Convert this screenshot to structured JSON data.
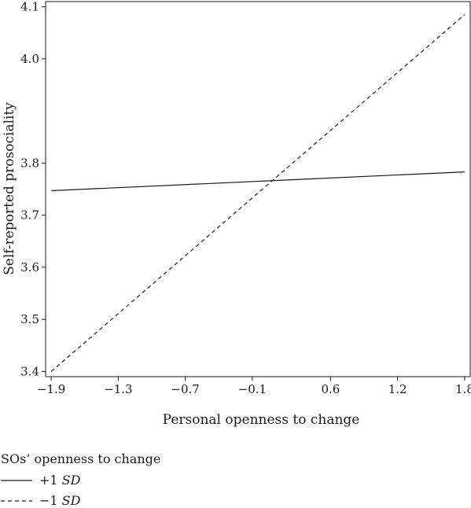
{
  "chart_data": {
    "type": "line",
    "xlabel": "Personal openness to change",
    "ylabel": "Self-reported prosociality",
    "x_ticks": [
      "−1.9",
      "−1.3",
      "−0.7",
      "−0.1",
      "0.6",
      "1.2",
      "1.8"
    ],
    "y_ticks": [
      "3.4",
      "3.5",
      "3.6",
      "3.7",
      "3.8",
      "4.0",
      "4.1"
    ],
    "x_tick_values": [
      -1.9,
      -1.3,
      -0.7,
      -0.1,
      0.6,
      1.2,
      1.8
    ],
    "y_tick_values": [
      3.4,
      3.5,
      3.6,
      3.7,
      3.8,
      4.0,
      4.1
    ],
    "xlim": [
      -1.95,
      1.85
    ],
    "ylim": [
      3.39,
      4.11
    ],
    "grid": false,
    "legend": {
      "title": "SOs’ openness to change",
      "placement": "bottom-left"
    },
    "series": [
      {
        "label_prefix": "+1 ",
        "label_sd": "SD",
        "line_style": "solid",
        "x": [
          -1.9,
          1.8
        ],
        "y": [
          3.747,
          3.783
        ]
      },
      {
        "label_prefix": "−1 ",
        "label_sd": "SD",
        "line_style": "dashed",
        "x": [
          -1.9,
          1.8
        ],
        "y": [
          3.4,
          4.085
        ]
      }
    ]
  }
}
